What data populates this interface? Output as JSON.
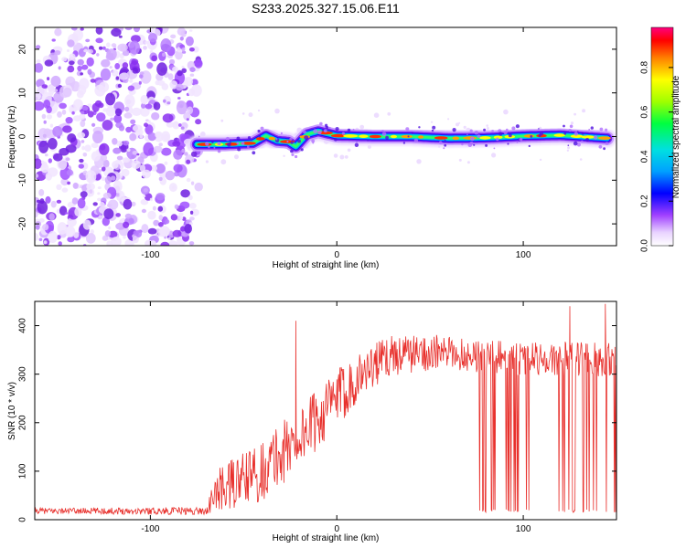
{
  "title": "S233.2025.327.15.06.E11",
  "colors": {
    "series": "#e8302c",
    "axes": "#000000",
    "noise_purple": "#8a2be2",
    "band_core": "#ff2000"
  },
  "chart_data": [
    {
      "type": "heatmap",
      "title": "S233.2025.327.15.06.E11",
      "xlabel": "Height of straight line (km)",
      "ylabel": "Frequency (Hz)",
      "xlim": [
        -162,
        150
      ],
      "ylim": [
        -25,
        25
      ],
      "x_ticks": [
        -100,
        0,
        100
      ],
      "y_ticks": [
        -20,
        -10,
        0,
        10,
        20
      ],
      "description_of_content": "broadband noise for x < -75 km, narrow band near 0 Hz for x > -75 km",
      "noise_x_range": [
        -162,
        -74
      ],
      "band_trace": {
        "x": [
          -75,
          -60,
          -45,
          -38,
          -32,
          -26,
          -22,
          -16,
          -10,
          0,
          20,
          40,
          60,
          80,
          100,
          120,
          145
        ],
        "freq_hz": [
          -1.8,
          -1.8,
          -1.5,
          0.2,
          -1.0,
          -1.2,
          -2.3,
          0.5,
          1.2,
          0.2,
          0.0,
          0.0,
          -0.4,
          -0.3,
          0.1,
          0.3,
          -0.4
        ]
      },
      "colorbar": {
        "label": "Normalized spectral amplitude",
        "range": [
          0,
          0.98
        ],
        "ticks": [
          0.0,
          0.2,
          0.4,
          0.6,
          0.8
        ]
      }
    },
    {
      "type": "line",
      "xlabel": "Height of straight line (km)",
      "ylabel": "SNR (10 * v/v)",
      "xlim": [
        -162,
        150
      ],
      "ylim": [
        0,
        450
      ],
      "x_ticks": [
        -100,
        0,
        100
      ],
      "y_ticks": [
        0,
        100,
        200,
        300,
        400
      ],
      "trend": {
        "x": [
          -162,
          -70,
          -64,
          -40,
          -20,
          0,
          10,
          20,
          30,
          50,
          80,
          100,
          120,
          150
        ],
        "snr": [
          18,
          18,
          60,
          100,
          170,
          250,
          290,
          320,
          340,
          345,
          338,
          332,
          332,
          330
        ]
      },
      "noise_amplitude": {
        "x": [
          -162,
          -70,
          -64,
          -30,
          0,
          20,
          60,
          120,
          150
        ],
        "amp": [
          6,
          8,
          45,
          70,
          60,
          45,
          35,
          35,
          35
        ]
      },
      "dropout_ranges": [
        [
          76,
          103
        ],
        [
          115,
          150
        ]
      ],
      "dropout_level": 15,
      "spikes": [
        {
          "x": -22,
          "snr": 410
        },
        {
          "x": 125,
          "snr": 440
        },
        {
          "x": 144,
          "snr": 445
        }
      ]
    }
  ]
}
